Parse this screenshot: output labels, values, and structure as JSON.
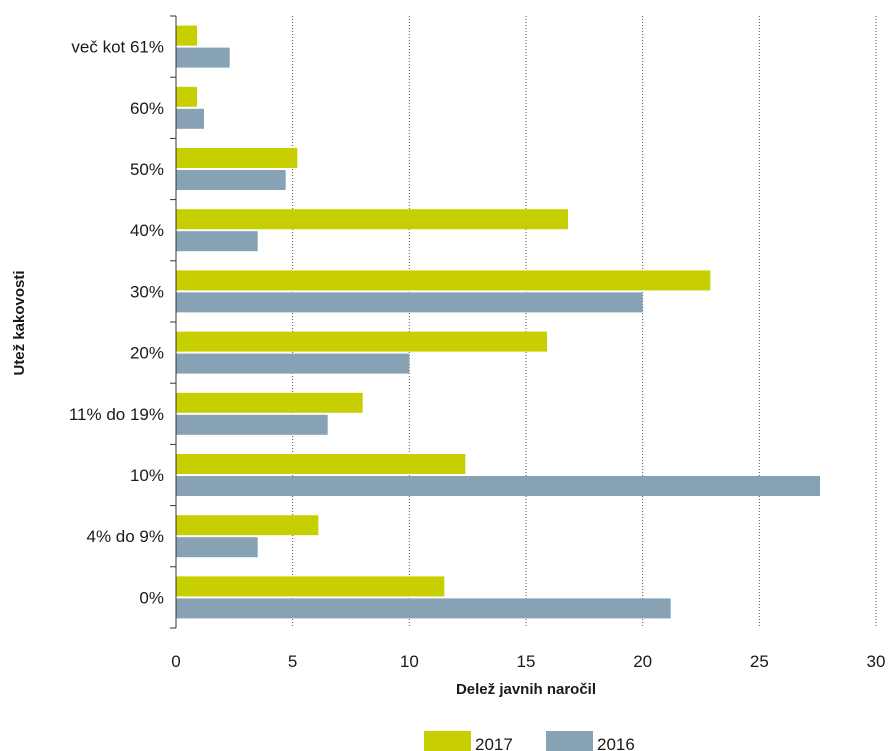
{
  "chart_data": {
    "type": "bar",
    "orientation": "horizontal",
    "xlabel": "Delež javnih naročil",
    "ylabel": "Utež kakovosti",
    "xlim": [
      0,
      30
    ],
    "xticks": [
      "0",
      "5",
      "10",
      "15",
      "20",
      "25",
      "30"
    ],
    "grid": "vertical dotted",
    "legend_position": "bottom-center",
    "categories": [
      "več kot 61%",
      "60%",
      "50%",
      "40%",
      "30%",
      "20%",
      "11% do 19%",
      "10%",
      "4% do 9%",
      "0%"
    ],
    "series": [
      {
        "name": "2017",
        "color": "#c8cf00",
        "values": [
          0.9,
          0.9,
          5.2,
          16.8,
          22.9,
          15.9,
          8.0,
          12.4,
          6.1,
          11.5
        ]
      },
      {
        "name": "2016",
        "color": "#87a2b5",
        "values": [
          2.3,
          1.2,
          4.7,
          3.5,
          20.0,
          10.0,
          6.5,
          27.6,
          3.5,
          21.2
        ]
      }
    ]
  }
}
